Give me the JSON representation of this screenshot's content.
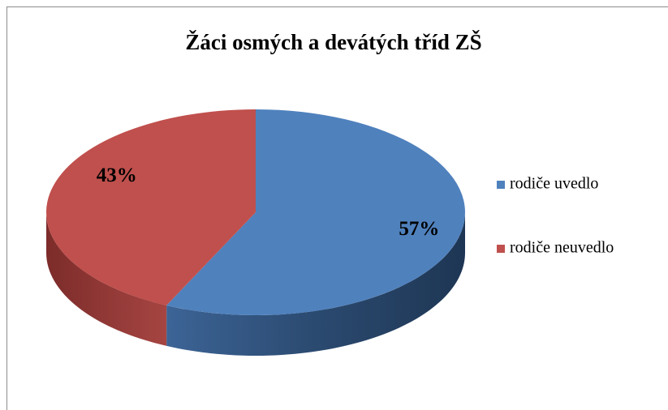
{
  "chart_data": {
    "type": "pie",
    "title": "Žáci osmých a devátých tříd ZŠ",
    "categories": [
      "rodiče uvedlo",
      "rodiče neuvedlo"
    ],
    "values": [
      57,
      43
    ],
    "value_labels": [
      "57%",
      "43%"
    ],
    "colors": [
      "#4f81bd",
      "#c0504d"
    ],
    "legend": "right"
  }
}
